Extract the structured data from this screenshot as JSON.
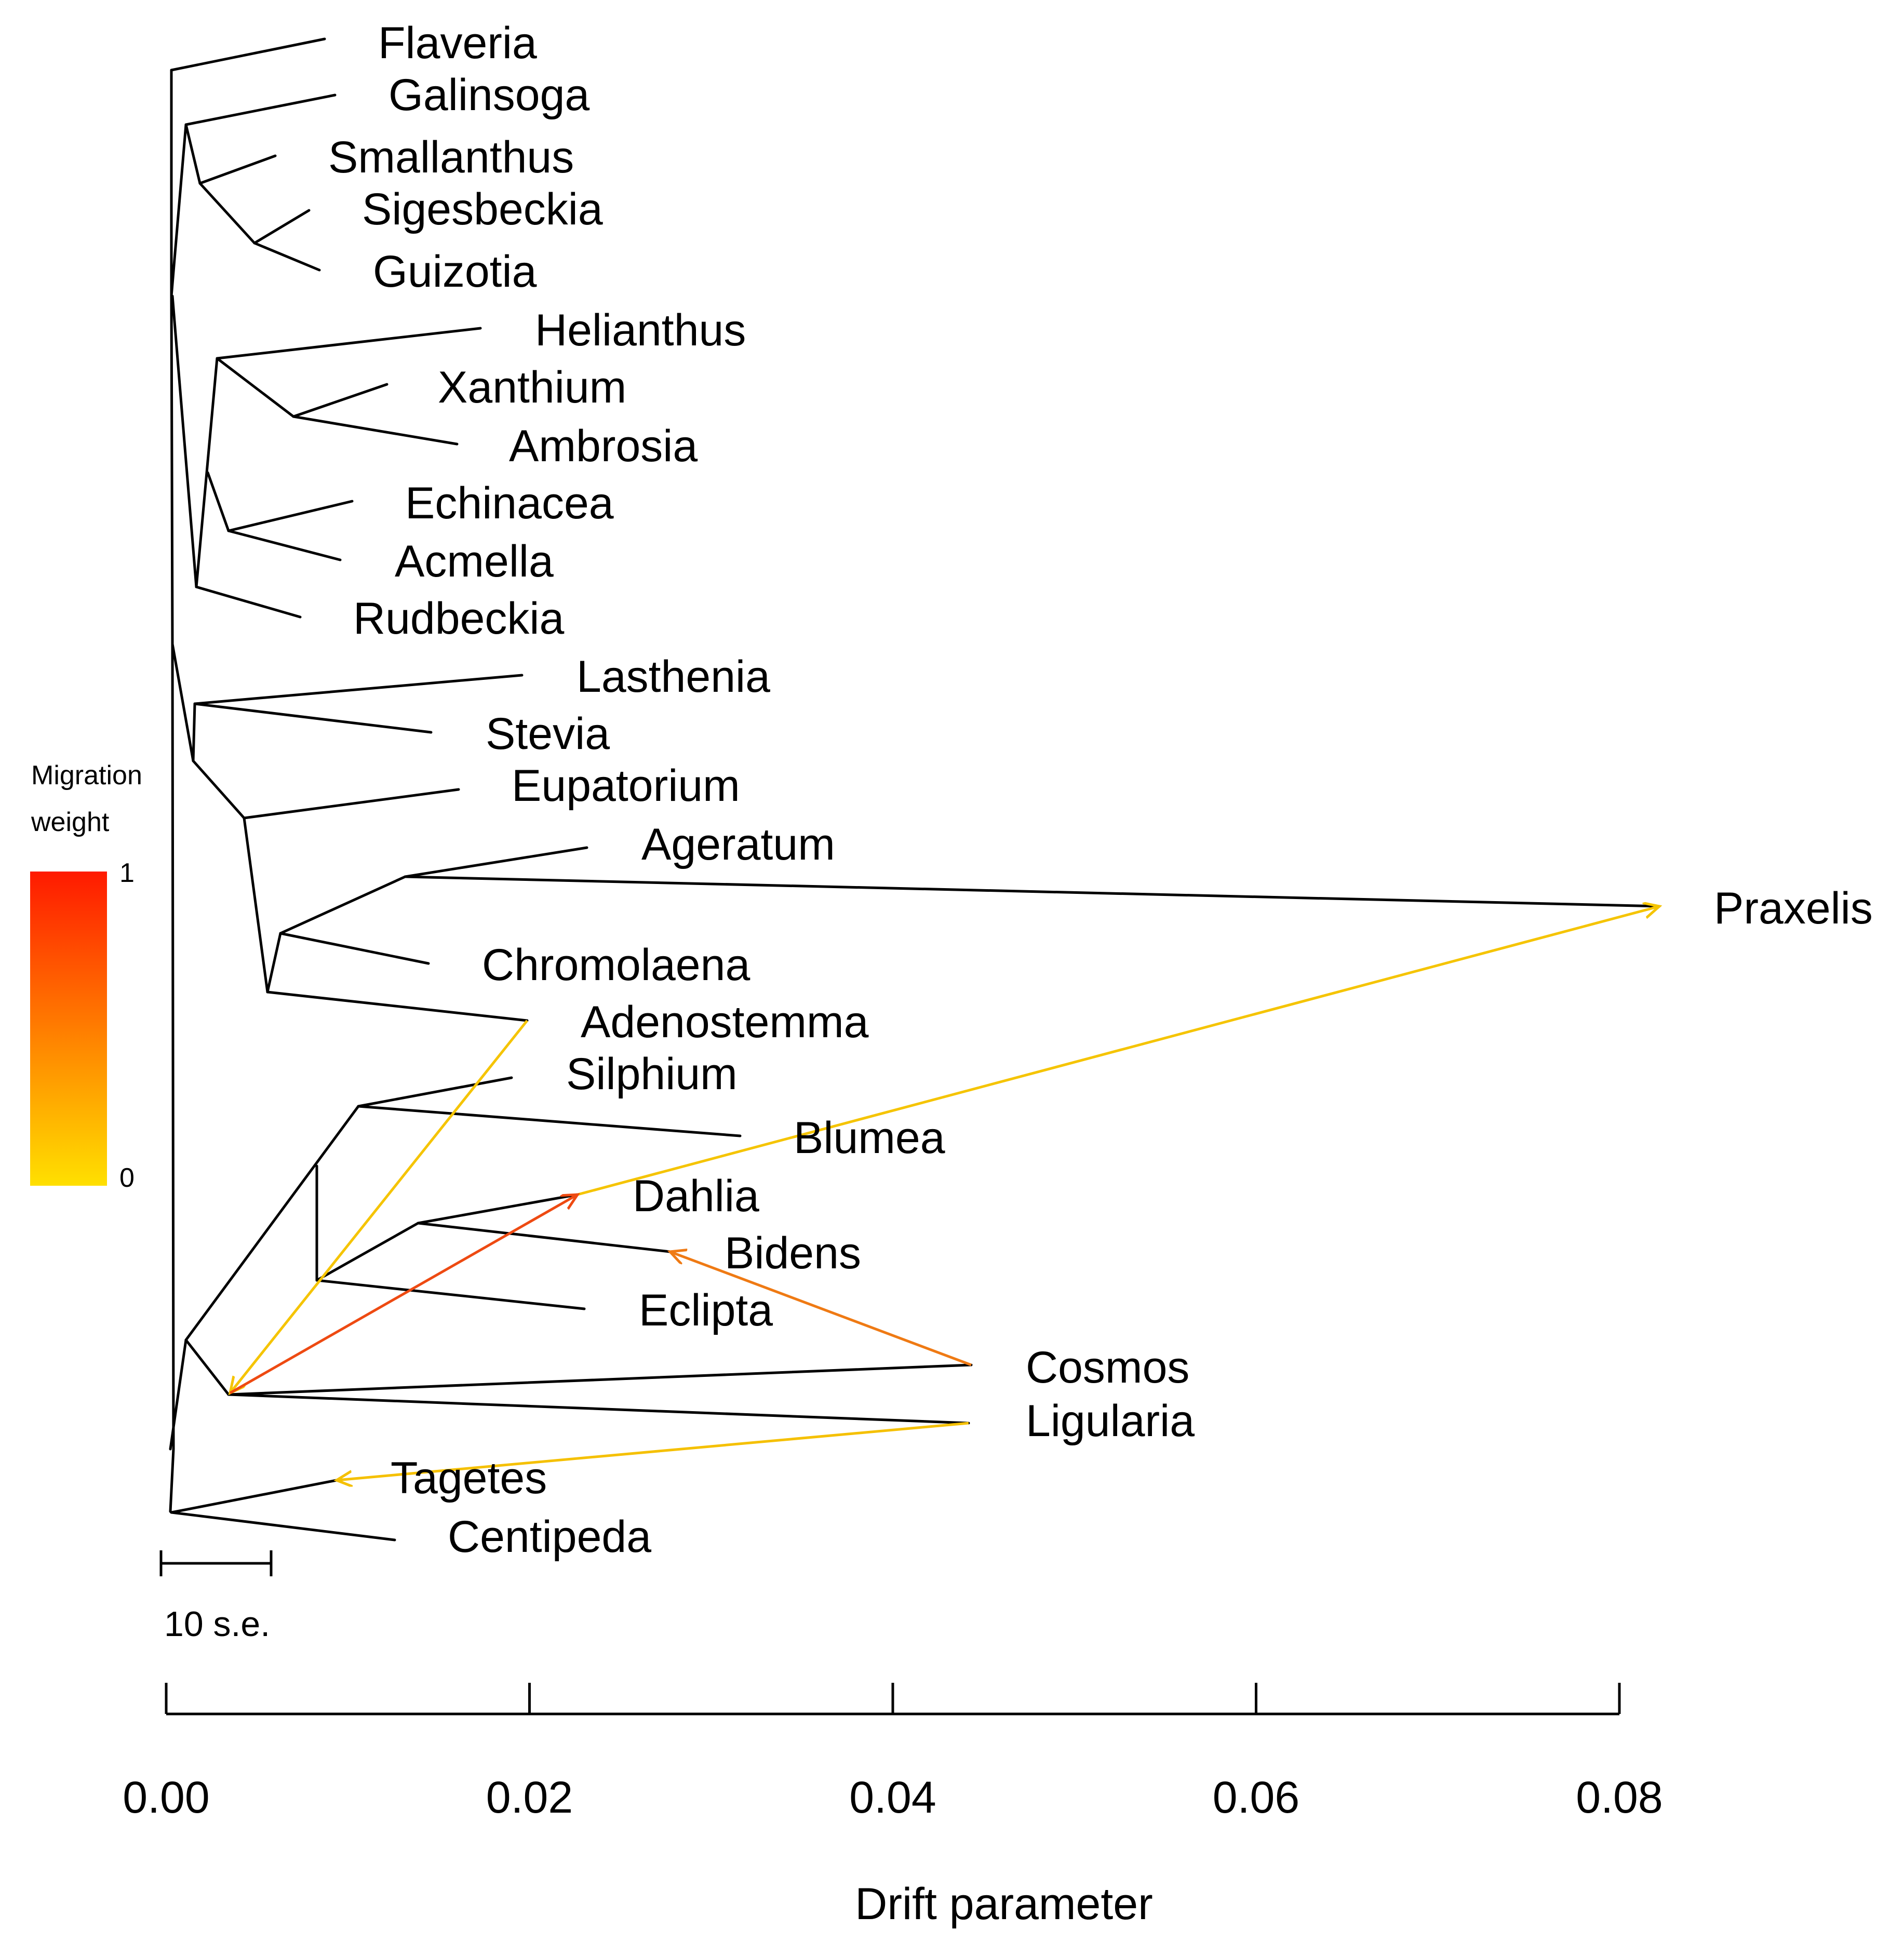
{
  "figure": {
    "xaxis": {
      "label": "Drift parameter",
      "ticks": [
        "0.00",
        "0.02",
        "0.04",
        "0.06",
        "0.08"
      ],
      "tick_values": [
        0.0,
        0.02,
        0.04,
        0.06,
        0.08
      ]
    },
    "scale_bar": {
      "label": "10 s.e."
    },
    "legend": {
      "title_line1": "Migration",
      "title_line2": "weight",
      "max_label": "1",
      "min_label": "0",
      "color_high": "#ff1a00",
      "color_low": "#ffe000"
    },
    "edge_color": "#000000"
  },
  "tree": {
    "taxa": [
      "Flaveria",
      "Galinsoga",
      "Smallanthus",
      "Sigesbeckia",
      "Guizotia",
      "Helianthus",
      "Xanthium",
      "Ambrosia",
      "Echinacea",
      "Acmella",
      "Rudbeckia",
      "Lasthenia",
      "Stevia",
      "Eupatorium",
      "Ageratum",
      "Praxelis",
      "Chromolaena",
      "Adenostemma",
      "Silphium",
      "Blumea",
      "Dahlia",
      "Bidens",
      "Eclipta",
      "Cosmos",
      "Ligularia",
      "Tagetes",
      "Centipeda"
    ]
  },
  "migrations": [
    {
      "from": "Adenostemma",
      "to": "Cosmos/Ligularia ancestor",
      "weight": 0.1,
      "color": "#f5c400"
    },
    {
      "from": "Dahlia/Silphium clade edge",
      "to": "Praxelis",
      "weight": 0.1,
      "color": "#f5c400"
    },
    {
      "from": "Cosmos/Ligularia ancestor",
      "to": "Dahlia",
      "weight": 0.7,
      "color": "#ee4a12"
    },
    {
      "from": "Cosmos",
      "to": "Bidens",
      "weight": 0.55,
      "color": "#ef7a14"
    },
    {
      "from": "Ligularia",
      "to": "Tagetes",
      "weight": 0.15,
      "color": "#f5c000"
    }
  ]
}
